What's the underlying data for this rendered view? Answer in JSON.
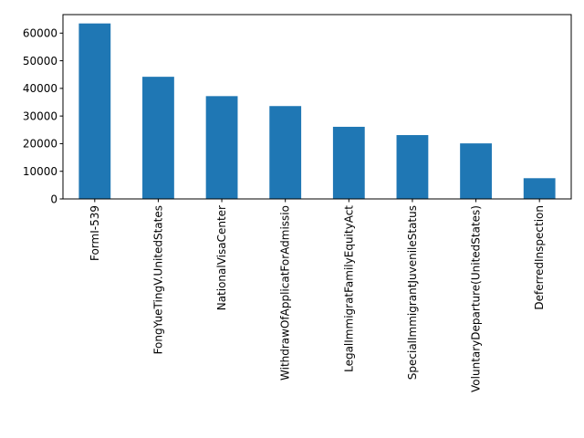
{
  "chart_data": {
    "type": "bar",
    "title": "",
    "xlabel": "",
    "ylabel": "",
    "categories": [
      "FormI-539",
      "FongYueTingV.UnitedStates",
      "NationalVisaCenter",
      "WithdrawOfApplicatForAdmissio",
      "LegalImmigratFamilyEquityAct",
      "SpecialImmigrantJuvenileStatus",
      "VoluntaryDeparture(UnitedStates)",
      "DeferredInspection"
    ],
    "values": [
      63500,
      44200,
      37200,
      33600,
      26100,
      23100,
      20100,
      7500
    ],
    "ylim": [
      0,
      66700
    ],
    "yticks": [
      0,
      10000,
      20000,
      30000,
      40000,
      50000,
      60000
    ],
    "bar_color": "#1f77b4",
    "grid": false,
    "legend": "none"
  }
}
